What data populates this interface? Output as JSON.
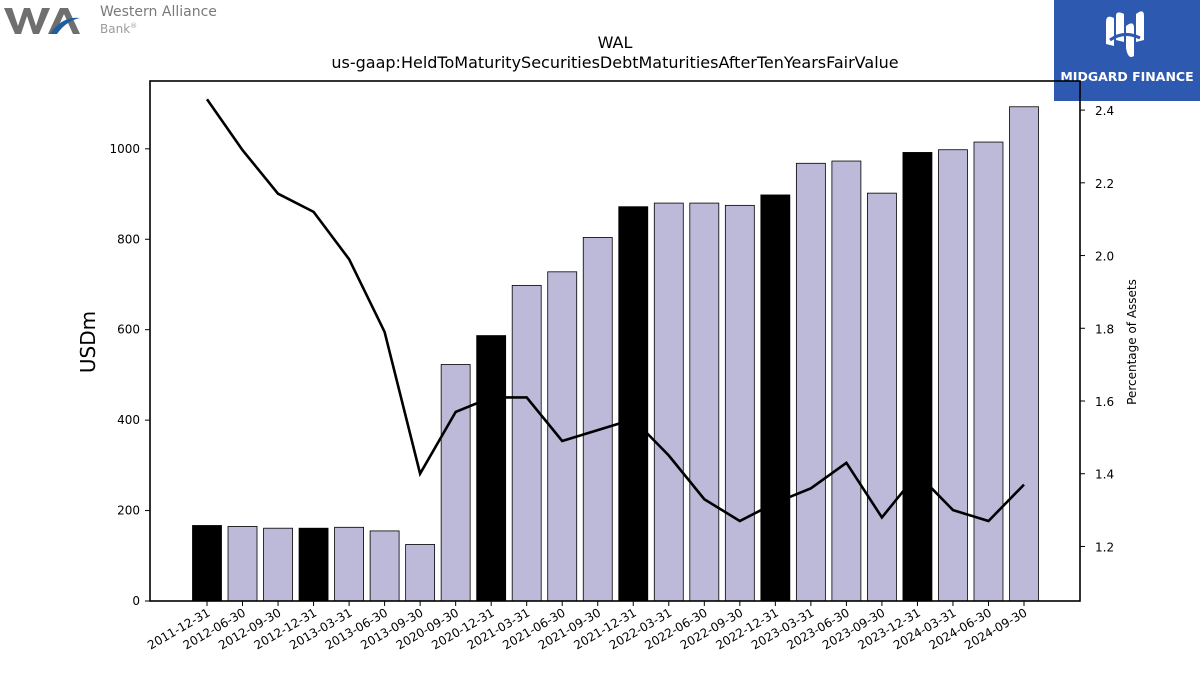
{
  "brand": {
    "name": "Western Alliance",
    "sub": "Bank",
    "reg_mark": "®",
    "colors": {
      "gray": "#6f6f6f",
      "blue": "#1f5fa0"
    }
  },
  "midgard": {
    "label": "MIDGARD FINANCE",
    "background": "#2d59b0"
  },
  "colors": {
    "bar_quarter": "#bcb9d9",
    "bar_year_end": "#000000",
    "line": "#000000"
  },
  "chart_data": {
    "type": "bar",
    "title": "WAL",
    "subtitle": "us-gaap:HeldToMaturitySecuritiesDebtMaturitiesAfterTenYearsFairValue",
    "xlabel": "",
    "ylabel": "USDm",
    "y2label": "Percentage of Assets",
    "ylim": [
      0,
      1150
    ],
    "y2lim": [
      1.05,
      2.48
    ],
    "yticks": [
      0,
      200,
      400,
      600,
      800,
      1000
    ],
    "y2ticks": [
      1.2,
      1.4,
      1.6,
      1.8,
      2.0,
      2.2,
      2.4
    ],
    "categories": [
      "2011-12-31",
      "2012-06-30",
      "2012-09-30",
      "2012-12-31",
      "2013-03-31",
      "2013-06-30",
      "2013-09-30",
      "2020-09-30",
      "2020-12-31",
      "2021-03-31",
      "2021-06-30",
      "2021-09-30",
      "2021-12-31",
      "2022-03-31",
      "2022-06-30",
      "2022-09-30",
      "2022-12-31",
      "2023-03-31",
      "2023-06-30",
      "2023-09-30",
      "2023-12-31",
      "2024-03-31",
      "2024-06-30",
      "2024-09-30"
    ],
    "series": [
      {
        "type": "bar",
        "axis": "left",
        "values": [
          167,
          165,
          161,
          161,
          163,
          155,
          125,
          523,
          587,
          698,
          728,
          804,
          872,
          880,
          880,
          875,
          898,
          968,
          973,
          902,
          992,
          998,
          1015,
          1093
        ],
        "year_end": [
          true,
          false,
          false,
          true,
          false,
          false,
          false,
          false,
          true,
          false,
          false,
          false,
          true,
          false,
          false,
          false,
          true,
          false,
          false,
          false,
          true,
          false,
          false,
          false
        ]
      },
      {
        "type": "line",
        "axis": "right",
        "values": [
          2.43,
          2.29,
          2.17,
          2.12,
          1.99,
          1.79,
          1.4,
          1.57,
          1.61,
          1.61,
          1.49,
          1.52,
          1.55,
          1.45,
          1.33,
          1.27,
          1.32,
          1.36,
          1.43,
          1.28,
          1.4,
          1.3,
          1.27,
          1.37
        ]
      }
    ],
    "grid": false,
    "legend": "none"
  }
}
